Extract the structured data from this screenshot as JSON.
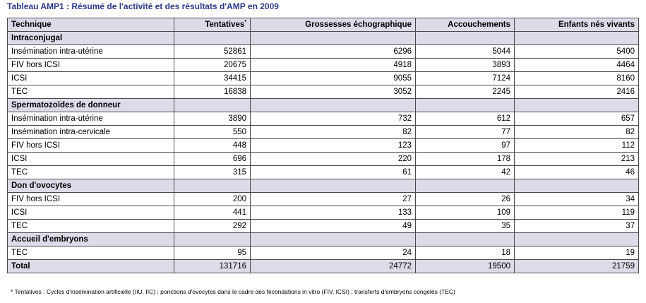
{
  "caption": "Tableau AMP1 : Résumé de l'activité et des résultats d'AMP en 2009",
  "columns": {
    "technique": "Technique",
    "tentatives": "Tentatives",
    "tentatives_mark": "*",
    "grossesses": "Grossesses échographique",
    "accouchements": "Accouchements",
    "enfants": "Enfants nés vivants"
  },
  "sections": [
    {
      "title": "Intraconjugal",
      "rows": [
        {
          "technique": "Insémination intra-utérine",
          "tentatives": "52861",
          "grossesses": "6296",
          "accouchements": "5044",
          "enfants": "5400"
        },
        {
          "technique": "FIV hors ICSI",
          "tentatives": "20675",
          "grossesses": "4918",
          "accouchements": "3893",
          "enfants": "4464"
        },
        {
          "technique": "ICSI",
          "tentatives": "34415",
          "grossesses": "9055",
          "accouchements": "7124",
          "enfants": "8160"
        },
        {
          "technique": "TEC",
          "tentatives": "16838",
          "grossesses": "3052",
          "accouchements": "2245",
          "enfants": "2416"
        }
      ]
    },
    {
      "title": "Spermatozoïdes de donneur",
      "rows": [
        {
          "technique": "Insémination intra-utérine",
          "tentatives": "3890",
          "grossesses": "732",
          "accouchements": "612",
          "enfants": "657"
        },
        {
          "technique": "Insémination intra-cervicale",
          "tentatives": "550",
          "grossesses": "82",
          "accouchements": "77",
          "enfants": "82"
        },
        {
          "technique": "FIV hors ICSI",
          "tentatives": "448",
          "grossesses": "123",
          "accouchements": "97",
          "enfants": "112"
        },
        {
          "technique": "ICSI",
          "tentatives": "696",
          "grossesses": "220",
          "accouchements": "178",
          "enfants": "213"
        },
        {
          "technique": "TEC",
          "tentatives": "315",
          "grossesses": "61",
          "accouchements": "42",
          "enfants": "46"
        }
      ]
    },
    {
      "title": "Don d'ovocytes",
      "rows": [
        {
          "technique": "FIV hors ICSI",
          "tentatives": "200",
          "grossesses": "27",
          "accouchements": "26",
          "enfants": "34"
        },
        {
          "technique": "ICSI",
          "tentatives": "441",
          "grossesses": "133",
          "accouchements": "109",
          "enfants": "119"
        },
        {
          "technique": "TEC",
          "tentatives": "292",
          "grossesses": "49",
          "accouchements": "35",
          "enfants": "37"
        }
      ]
    },
    {
      "title": "Accueil d'embryons",
      "rows": [
        {
          "technique": "TEC",
          "tentatives": "95",
          "grossesses": "24",
          "accouchements": "18",
          "enfants": "19"
        }
      ]
    }
  ],
  "total": {
    "technique": "Total",
    "tentatives": "131716",
    "grossesses": "24772",
    "accouchements": "19500",
    "enfants": "21759"
  },
  "footnote": "* Tentatives : Cycles d'insémination artificielle (IIU, IIC) ; ponctions d'ovocytes dans le cadre des fécondations in vitro (FIV, ICSI) ; transferts d'embryons congelés (TEC)",
  "colors": {
    "caption": "#2b3a8c",
    "header_bg": "#dcdce8",
    "border": "#4a4a4a"
  }
}
